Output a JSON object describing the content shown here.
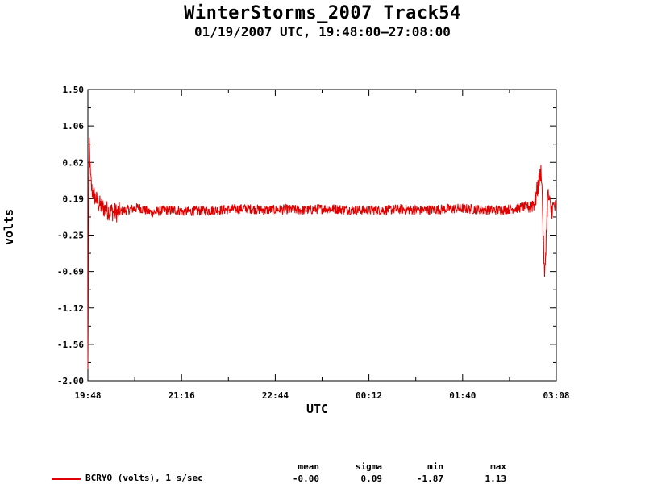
{
  "chart_data": {
    "type": "line",
    "title": "WinterStorms_2007 Track54",
    "subtitle": "01/19/2007 UTC, 19:48:00–27:08:00",
    "xlabel": "UTC",
    "ylabel": "volts",
    "x_ticks": [
      "19:48",
      "21:16",
      "22:44",
      "00:12",
      "01:40",
      "03:08"
    ],
    "y_ticks": [
      "1.50",
      "1.06",
      "0.62",
      "0.19",
      "-0.25",
      "-0.69",
      "-1.12",
      "-1.56",
      "-2.00"
    ],
    "ylim": [
      -2.0,
      1.5
    ],
    "xlim_hours": [
      19.8,
      27.1333
    ],
    "grid": false,
    "series": [
      {
        "name": "BCRYO (volts), 1 s/sec",
        "color": "#e00000",
        "x_hours": [
          19.8,
          19.82,
          19.84,
          19.86,
          19.9,
          19.95,
          20.0,
          20.1,
          20.25,
          20.4,
          20.6,
          20.8,
          21.0,
          21.2,
          21.3,
          21.5,
          21.8,
          22.0,
          22.3,
          22.6,
          22.9,
          23.2,
          23.5,
          23.8,
          24.1,
          24.4,
          24.7,
          25.0,
          25.3,
          25.6,
          25.9,
          26.2,
          26.5,
          26.7,
          26.8,
          26.9,
          26.95,
          27.0,
          27.05,
          27.1,
          27.13
        ],
        "values": [
          -1.9,
          0.9,
          0.45,
          0.3,
          0.22,
          0.15,
          0.1,
          0.05,
          0.02,
          0.05,
          0.08,
          0.02,
          0.05,
          0.05,
          0.03,
          0.04,
          0.05,
          0.06,
          0.07,
          0.05,
          0.06,
          0.05,
          0.07,
          0.06,
          0.05,
          0.05,
          0.06,
          0.05,
          0.06,
          0.07,
          0.06,
          0.05,
          0.07,
          0.1,
          0.15,
          0.55,
          -0.8,
          0.25,
          0.05,
          0.1,
          0.05
        ]
      }
    ],
    "stats": {
      "headers": [
        "mean",
        "sigma",
        "min",
        "max"
      ],
      "values": [
        "-0.00",
        "0.09",
        "-1.87",
        "1.13"
      ]
    },
    "legend_placement": "bottom-left"
  }
}
